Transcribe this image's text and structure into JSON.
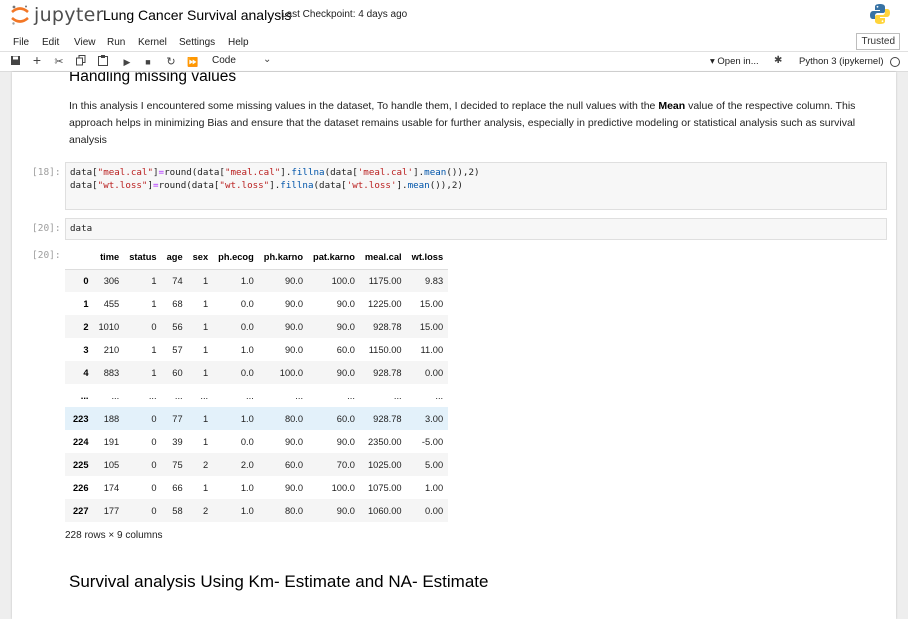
{
  "header": {
    "logo_text": "jupyter",
    "notebook_title": "Lung Cancer Survival analysis",
    "checkpoint": "Last Checkpoint: 4 days ago"
  },
  "menu": {
    "items": [
      "File",
      "Edit",
      "View",
      "Run",
      "Kernel",
      "Settings",
      "Help"
    ],
    "trusted": "Trusted"
  },
  "toolbar": {
    "cell_type": "Code",
    "open_in": "Open in...",
    "kernel": "Python 3 (ipykernel)"
  },
  "cells": {
    "md1": {
      "heading": "Handling missing values",
      "text_before": "In this analysis I encountered some missing values in the dataset, To handle them, I decided to replace the null values with the ",
      "bold": "Mean",
      "text_after": " value of the respective column. This approach helps in minimizing Bias and ensure that the dataset remains usable for further analysis, especially in predictive modeling or statistical analysis such as survival analysis"
    },
    "code18": {
      "prompt": "[18]:",
      "line1": {
        "a": "data[",
        "b": "\"meal.cal\"",
        "c": "]",
        "d": "=",
        "e": "round(data[",
        "f": "\"meal.cal\"",
        "g": "].",
        "h": "fillna",
        "i": "(data[",
        "j": "'meal.cal'",
        "k": "].",
        "l": "mean",
        "m": "()),2)"
      },
      "line2": {
        "a": "data[",
        "b": "\"wt.loss\"",
        "c": "]",
        "d": "=",
        "e": "round(data[",
        "f": "\"wt.loss\"",
        "g": "].",
        "h": "fillna",
        "i": "(data[",
        "j": "'wt.loss'",
        "k": "].",
        "l": "mean",
        "m": "()),2)"
      }
    },
    "code20": {
      "prompt": "[20]:",
      "source": "data"
    },
    "out20": {
      "prompt": "[20]:",
      "columns": [
        "",
        "time",
        "status",
        "age",
        "sex",
        "ph.ecog",
        "ph.karno",
        "pat.karno",
        "meal.cal",
        "wt.loss"
      ],
      "rows": [
        [
          "0",
          "306",
          "1",
          "74",
          "1",
          "1.0",
          "90.0",
          "100.0",
          "1175.00",
          "9.83"
        ],
        [
          "1",
          "455",
          "1",
          "68",
          "1",
          "0.0",
          "90.0",
          "90.0",
          "1225.00",
          "15.00"
        ],
        [
          "2",
          "1010",
          "0",
          "56",
          "1",
          "0.0",
          "90.0",
          "90.0",
          "928.78",
          "15.00"
        ],
        [
          "3",
          "210",
          "1",
          "57",
          "1",
          "1.0",
          "90.0",
          "60.0",
          "1150.00",
          "11.00"
        ],
        [
          "4",
          "883",
          "1",
          "60",
          "1",
          "0.0",
          "100.0",
          "90.0",
          "928.78",
          "0.00"
        ],
        [
          "...",
          "...",
          "...",
          "...",
          "...",
          "...",
          "...",
          "...",
          "...",
          "..."
        ],
        [
          "223",
          "188",
          "0",
          "77",
          "1",
          "1.0",
          "80.0",
          "60.0",
          "928.78",
          "3.00"
        ],
        [
          "224",
          "191",
          "0",
          "39",
          "1",
          "0.0",
          "90.0",
          "90.0",
          "2350.00",
          "-5.00"
        ],
        [
          "225",
          "105",
          "0",
          "75",
          "2",
          "2.0",
          "60.0",
          "70.0",
          "1025.00",
          "5.00"
        ],
        [
          "226",
          "174",
          "0",
          "66",
          "1",
          "1.0",
          "90.0",
          "100.0",
          "1075.00",
          "1.00"
        ],
        [
          "227",
          "177",
          "0",
          "58",
          "2",
          "1.0",
          "80.0",
          "90.0",
          "1060.00",
          "0.00"
        ]
      ],
      "shape": "228 rows × 9 columns"
    },
    "md2": {
      "heading": "Survival analysis Using Km- Estimate and NA- Estimate"
    }
  }
}
